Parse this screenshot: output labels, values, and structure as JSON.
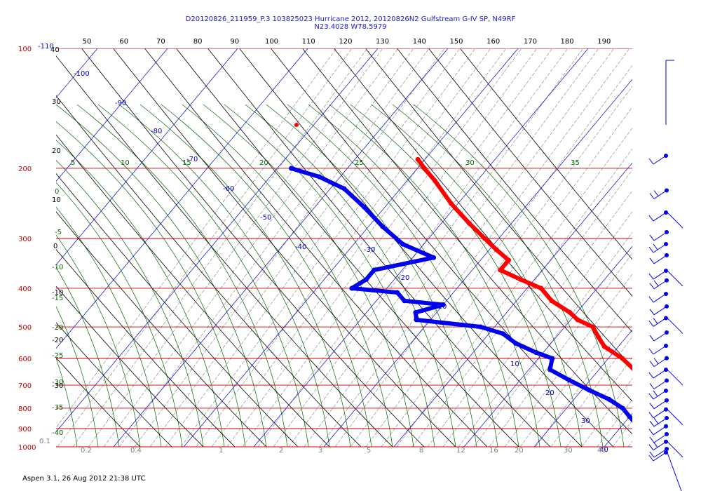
{
  "header": {
    "title_line1": "D20120826_211959_P.3 103825023 Hurricane 2012, 20120826N2 Gulfstream G-IV SP, N49RF",
    "title_line2": "N23.4028 W78.5979"
  },
  "footer": {
    "text": "Aspen 3.1, 26 Aug 2012  21:38 UTC"
  },
  "chart_data": {
    "type": "skew-t",
    "colors": {
      "temperature": "#ff0000",
      "dewpoint": "#0000ee",
      "isobar": "#cc0000",
      "isotherm": "#0000cc",
      "dry_adiabat": "#000000",
      "moist_adiabat": "#006600",
      "mixing_ratio": "#808080",
      "wind": "#0000ee"
    },
    "pressure_labels": [
      "100",
      "200",
      "300",
      "400",
      "500",
      "600",
      "700",
      "800",
      "900",
      "1000"
    ],
    "pressure_levels_hpa": [
      100,
      200,
      300,
      400,
      500,
      600,
      700,
      800,
      900,
      1000
    ],
    "top_axis_labels": [
      "50",
      "60",
      "70",
      "80",
      "90",
      "100",
      "110",
      "120",
      "130",
      "140",
      "150",
      "160",
      "170",
      "180",
      "190"
    ],
    "top_axis_values": [
      50,
      60,
      70,
      80,
      90,
      100,
      110,
      120,
      130,
      140,
      150,
      160,
      170,
      180,
      190
    ],
    "isotherm_labels": [
      "-110",
      "-100",
      "-90",
      "-80",
      "-70",
      "-60",
      "-50",
      "-40",
      "-30",
      "-20",
      "-10",
      "10",
      "20",
      "30",
      "40"
    ],
    "dry_adiabat_labels": [
      "40",
      "30",
      "20",
      "10",
      "0",
      "-10",
      "-20",
      "-30"
    ],
    "moist_adiabat_labels": [
      "5",
      "10",
      "15",
      "20",
      "25",
      "30",
      "35",
      "0",
      "-5",
      "-10",
      "-15",
      "-20",
      "-25",
      "-30",
      "-35",
      "-40"
    ],
    "mixing_ratio_labels": [
      "0.1",
      "0.2",
      "0.4",
      "1",
      "2",
      "3",
      "5",
      "8",
      "12",
      "16",
      "20",
      "30",
      "40"
    ],
    "temperature_profile": [
      {
        "p": 190,
        "t": -51
      },
      {
        "p": 200,
        "t": -49
      },
      {
        "p": 215,
        "t": -46
      },
      {
        "p": 245,
        "t": -41
      },
      {
        "p": 275,
        "t": -36
      },
      {
        "p": 300,
        "t": -32
      },
      {
        "p": 320,
        "t": -29
      },
      {
        "p": 340,
        "t": -26
      },
      {
        "p": 360,
        "t": -26
      },
      {
        "p": 380,
        "t": -22
      },
      {
        "p": 400,
        "t": -18
      },
      {
        "p": 430,
        "t": -15
      },
      {
        "p": 460,
        "t": -11
      },
      {
        "p": 480,
        "t": -9
      },
      {
        "p": 500,
        "t": -6
      },
      {
        "p": 530,
        "t": -4
      },
      {
        "p": 560,
        "t": -2
      },
      {
        "p": 600,
        "t": 2
      },
      {
        "p": 640,
        "t": 5
      },
      {
        "p": 680,
        "t": 8
      },
      {
        "p": 720,
        "t": 11
      },
      {
        "p": 760,
        "t": 13
      },
      {
        "p": 800,
        "t": 16
      },
      {
        "p": 840,
        "t": 19
      },
      {
        "p": 880,
        "t": 21
      },
      {
        "p": 920,
        "t": 24
      },
      {
        "p": 960,
        "t": 26
      },
      {
        "p": 1000,
        "t": 29
      }
    ],
    "dewpoint_profile": [
      {
        "p": 200,
        "t": -68
      },
      {
        "p": 210,
        "t": -63
      },
      {
        "p": 225,
        "t": -58
      },
      {
        "p": 250,
        "t": -53
      },
      {
        "p": 280,
        "t": -48
      },
      {
        "p": 310,
        "t": -43
      },
      {
        "p": 335,
        "t": -37
      },
      {
        "p": 360,
        "t": -44
      },
      {
        "p": 380,
        "t": -44
      },
      {
        "p": 400,
        "t": -45
      },
      {
        "p": 410,
        "t": -38
      },
      {
        "p": 430,
        "t": -36
      },
      {
        "p": 440,
        "t": -30
      },
      {
        "p": 460,
        "t": -33
      },
      {
        "p": 480,
        "t": -32
      },
      {
        "p": 500,
        "t": -22
      },
      {
        "p": 520,
        "t": -18
      },
      {
        "p": 550,
        "t": -15
      },
      {
        "p": 580,
        "t": -11
      },
      {
        "p": 600,
        "t": -8
      },
      {
        "p": 640,
        "t": -7
      },
      {
        "p": 680,
        "t": -3
      },
      {
        "p": 720,
        "t": 1
      },
      {
        "p": 760,
        "t": 5
      },
      {
        "p": 800,
        "t": 8
      },
      {
        "p": 840,
        "t": 10
      },
      {
        "p": 880,
        "t": 12
      },
      {
        "p": 920,
        "t": 15
      },
      {
        "p": 960,
        "t": 19
      },
      {
        "p": 1000,
        "t": 22
      }
    ],
    "wind_barb_levels_hpa": [
      180,
      220,
      250,
      280,
      300,
      320,
      350,
      370,
      400,
      430,
      460,
      500,
      540,
      580,
      620,
      660,
      700,
      740,
      780,
      820,
      860,
      900,
      940,
      980,
      1000
    ]
  }
}
